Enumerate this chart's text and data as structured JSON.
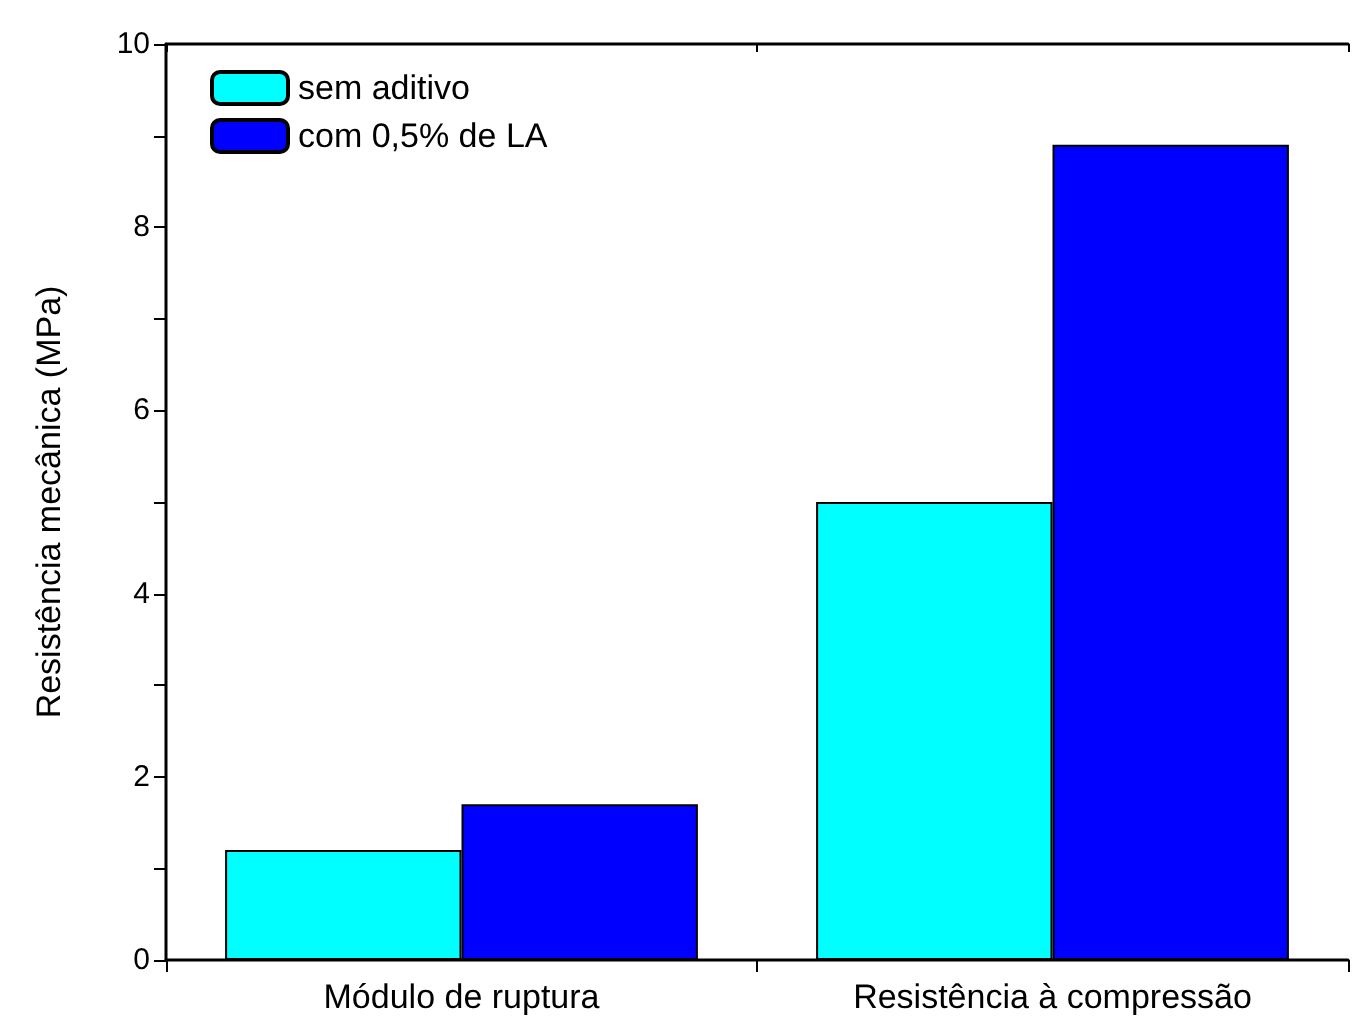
{
  "chart_data": {
    "type": "bar",
    "ylabel": "Resistência mecânica (MPa)",
    "categories": [
      "Módulo de ruptura",
      "Resistência à compressão"
    ],
    "series": [
      {
        "name": "sem aditivo",
        "color": "#00ffff",
        "values": [
          1.2,
          5.0
        ]
      },
      {
        "name": "com 0,5% de LA",
        "color": "#0000ff",
        "values": [
          1.7,
          8.9
        ]
      }
    ],
    "ylim": [
      0,
      10
    ],
    "yticks": [
      0,
      {
        "value": 1,
        "label": null
      },
      2,
      {
        "value": 3,
        "label": null
      },
      4,
      {
        "value": 5,
        "label": null
      },
      6,
      {
        "value": 7,
        "label": null
      },
      8,
      {
        "value": 9,
        "label": null
      },
      10
    ],
    "grid": false,
    "legend": "top left"
  }
}
